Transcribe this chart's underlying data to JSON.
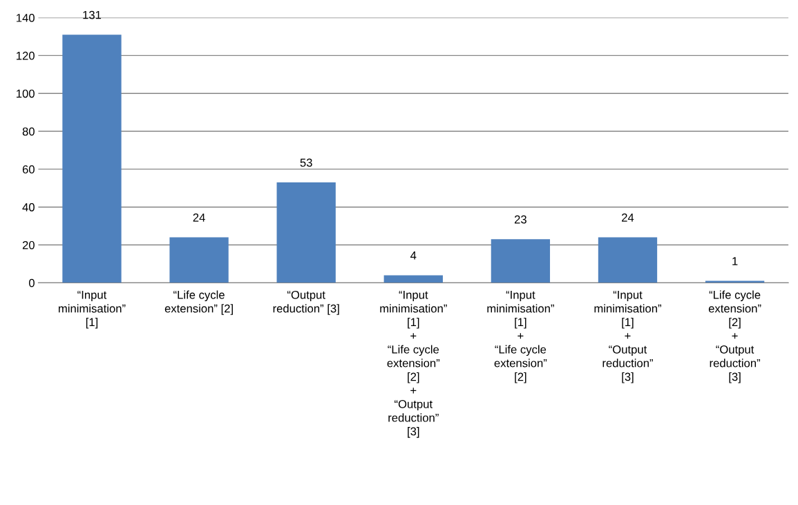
{
  "chart_data": {
    "type": "bar",
    "categories": [
      "“Input\nminimisation”\n[1]",
      "“Life cycle\nextension” [2]",
      "“Output\nreduction” [3]",
      "“Input\nminimisation”\n[1]\n+\n“Life cycle\nextension”\n[2]\n+\n“Output\nreduction”\n[3]",
      "“Input\nminimisation”\n[1]\n+\n“Life cycle\nextension”\n[2]",
      "“Input\nminimisation”\n[1]\n+\n“Output\nreduction”\n[3]",
      "“Life cycle\nextension”\n[2]\n+\n“Output\nreduction”\n[3]"
    ],
    "values": [
      131,
      24,
      53,
      4,
      23,
      24,
      1
    ],
    "color": "#4f81bd",
    "ylim": [
      0,
      140
    ],
    "yticks": [
      0,
      20,
      40,
      60,
      80,
      100,
      120,
      140
    ],
    "grid": "y",
    "data_labels": true,
    "legend": false
  }
}
